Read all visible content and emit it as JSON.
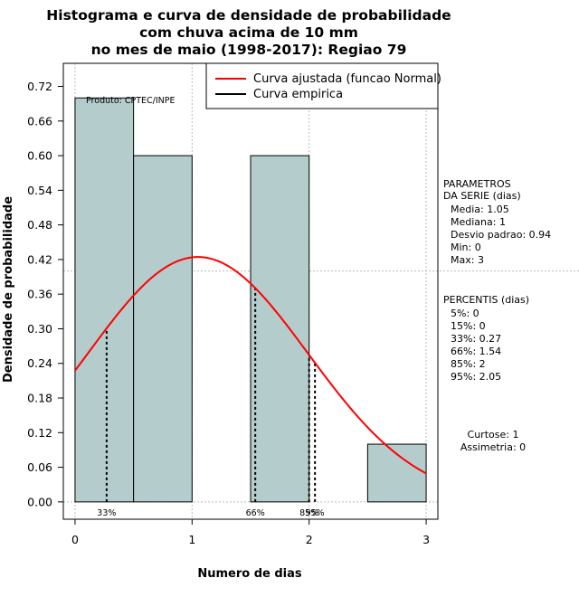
{
  "chart_data": {
    "type": "bar",
    "title_lines": [
      "Histograma e curva de densidade de probabilidade",
      "com chuva acima de 10 mm",
      "no mes de maio (1998-2017): Regiao 79"
    ],
    "xlabel": "Numero de dias",
    "ylabel": "Densidade de probabilidade",
    "xlim": [
      -0.1,
      3.1
    ],
    "ylim": [
      -0.03,
      0.76
    ],
    "xticks": [
      0,
      1,
      2,
      3
    ],
    "yticks": [
      0.0,
      0.06,
      0.12,
      0.18,
      0.24,
      0.3,
      0.36,
      0.42,
      0.48,
      0.54,
      0.6,
      0.66,
      0.72
    ],
    "ytick_labels": [
      "0.00",
      "0.06",
      "0.12",
      "0.18",
      "0.24",
      "0.30",
      "0.36",
      "0.42",
      "0.48",
      "0.54",
      "0.60",
      "0.66",
      "0.72"
    ],
    "grid": true,
    "bars": [
      {
        "x0": 0.0,
        "x1": 0.5,
        "value": 0.7
      },
      {
        "x0": 0.5,
        "x1": 1.0,
        "value": 0.6
      },
      {
        "x0": 1.5,
        "x1": 2.0,
        "value": 0.6
      },
      {
        "x0": 2.5,
        "x1": 3.0,
        "value": 0.1
      }
    ],
    "normal_curve": {
      "mean": 1.05,
      "sd": 0.94,
      "x_range": [
        0,
        3
      ]
    },
    "ref_line_y": 0.4,
    "percentile_lines": [
      {
        "x": 0.27,
        "label": "33%"
      },
      {
        "x": 1.54,
        "label": "66%"
      },
      {
        "x": 2.0,
        "label": "85%"
      },
      {
        "x": 2.05,
        "label": "95%"
      }
    ],
    "legend": {
      "position": "top-right",
      "items": [
        {
          "label": "Curva ajustada (funcao Normal)",
          "color": "#ff0000"
        },
        {
          "label": "Curva empirica",
          "color": "#000000"
        }
      ]
    },
    "product_label": "Produto: CPTEC/INPE",
    "colors": {
      "bar_fill": "#b4cccc",
      "curve": "#ff0000",
      "grid": "#bbbbbb"
    }
  },
  "side_panel": {
    "param_header": [
      "PARAMETROS",
      "DA SERIE (dias)"
    ],
    "param_lines": [
      "Media: 1.05",
      "Mediana: 1",
      "Desvio padrao: 0.94",
      "Min: 0",
      "Max: 3"
    ],
    "pct_header": "PERCENTIS (dias)",
    "pct_lines": [
      "5%: 0",
      "15%: 0",
      "33%: 0.27",
      "66%: 1.54",
      "85%: 2",
      "95%: 2.05"
    ],
    "stats_lines": [
      "Curtose: 1",
      "Assimetria: 0"
    ]
  }
}
